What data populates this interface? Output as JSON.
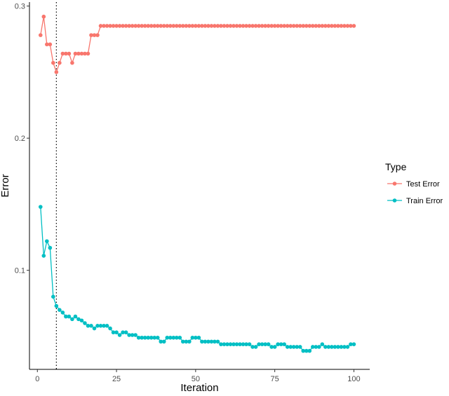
{
  "chart_data": {
    "type": "line",
    "xlabel": "Iteration",
    "ylabel": "Error",
    "xlim": [
      -2.5,
      105
    ],
    "ylim": [
      0.025,
      0.303
    ],
    "x_ticks": [
      "0",
      "25",
      "50",
      "75",
      "100"
    ],
    "y_ticks": [
      "0.1",
      "0.2",
      "0.3"
    ],
    "x_tick_values": [
      0,
      25,
      50,
      75,
      100
    ],
    "y_tick_values": [
      0.1,
      0.2,
      0.3
    ],
    "grid": false,
    "vline": {
      "x": 6,
      "style": "dotted"
    },
    "legend": {
      "title": "Type",
      "position": "right"
    },
    "x": [
      1,
      2,
      3,
      4,
      5,
      6,
      7,
      8,
      9,
      10,
      11,
      12,
      13,
      14,
      15,
      16,
      17,
      18,
      19,
      20,
      21,
      22,
      23,
      24,
      25,
      26,
      27,
      28,
      29,
      30,
      31,
      32,
      33,
      34,
      35,
      36,
      37,
      38,
      39,
      40,
      41,
      42,
      43,
      44,
      45,
      46,
      47,
      48,
      49,
      50,
      51,
      52,
      53,
      54,
      55,
      56,
      57,
      58,
      59,
      60,
      61,
      62,
      63,
      64,
      65,
      66,
      67,
      68,
      69,
      70,
      71,
      72,
      73,
      74,
      75,
      76,
      77,
      78,
      79,
      80,
      81,
      82,
      83,
      84,
      85,
      86,
      87,
      88,
      89,
      90,
      91,
      92,
      93,
      94,
      95,
      96,
      97,
      98,
      99,
      100
    ],
    "series": [
      {
        "name": "Test Error",
        "color": "#F8766D",
        "values": [
          0.278,
          0.292,
          0.271,
          0.271,
          0.257,
          0.25,
          0.257,
          0.264,
          0.264,
          0.264,
          0.257,
          0.264,
          0.264,
          0.264,
          0.264,
          0.264,
          0.278,
          0.278,
          0.278,
          0.285,
          0.285,
          0.285,
          0.285,
          0.285,
          0.285,
          0.285,
          0.285,
          0.285,
          0.285,
          0.285,
          0.285,
          0.285,
          0.285,
          0.285,
          0.285,
          0.285,
          0.285,
          0.285,
          0.285,
          0.285,
          0.285,
          0.285,
          0.285,
          0.285,
          0.285,
          0.285,
          0.285,
          0.285,
          0.285,
          0.285,
          0.285,
          0.285,
          0.285,
          0.285,
          0.285,
          0.285,
          0.285,
          0.285,
          0.285,
          0.285,
          0.285,
          0.285,
          0.285,
          0.285,
          0.285,
          0.285,
          0.285,
          0.285,
          0.285,
          0.285,
          0.285,
          0.285,
          0.285,
          0.285,
          0.285,
          0.285,
          0.285,
          0.285,
          0.285,
          0.285,
          0.285,
          0.285,
          0.285,
          0.285,
          0.285,
          0.285,
          0.285,
          0.285,
          0.285,
          0.285,
          0.285,
          0.285,
          0.285,
          0.285,
          0.285,
          0.285,
          0.285,
          0.285,
          0.285,
          0.285
        ]
      },
      {
        "name": "Train Error",
        "color": "#00BFC4",
        "values": [
          0.148,
          0.111,
          0.122,
          0.117,
          0.08,
          0.073,
          0.07,
          0.068,
          0.065,
          0.065,
          0.063,
          0.065,
          0.063,
          0.062,
          0.06,
          0.058,
          0.058,
          0.056,
          0.058,
          0.058,
          0.058,
          0.058,
          0.056,
          0.053,
          0.053,
          0.051,
          0.053,
          0.053,
          0.051,
          0.051,
          0.051,
          0.049,
          0.049,
          0.049,
          0.049,
          0.049,
          0.049,
          0.049,
          0.046,
          0.046,
          0.049,
          0.049,
          0.049,
          0.049,
          0.049,
          0.046,
          0.046,
          0.046,
          0.049,
          0.049,
          0.049,
          0.046,
          0.046,
          0.046,
          0.046,
          0.046,
          0.046,
          0.044,
          0.044,
          0.044,
          0.044,
          0.044,
          0.044,
          0.044,
          0.044,
          0.044,
          0.044,
          0.042,
          0.042,
          0.044,
          0.044,
          0.044,
          0.044,
          0.042,
          0.042,
          0.044,
          0.044,
          0.044,
          0.042,
          0.042,
          0.042,
          0.042,
          0.042,
          0.039,
          0.039,
          0.039,
          0.042,
          0.042,
          0.042,
          0.044,
          0.042,
          0.042,
          0.042,
          0.042,
          0.042,
          0.042,
          0.042,
          0.042,
          0.044,
          0.044
        ]
      }
    ]
  }
}
